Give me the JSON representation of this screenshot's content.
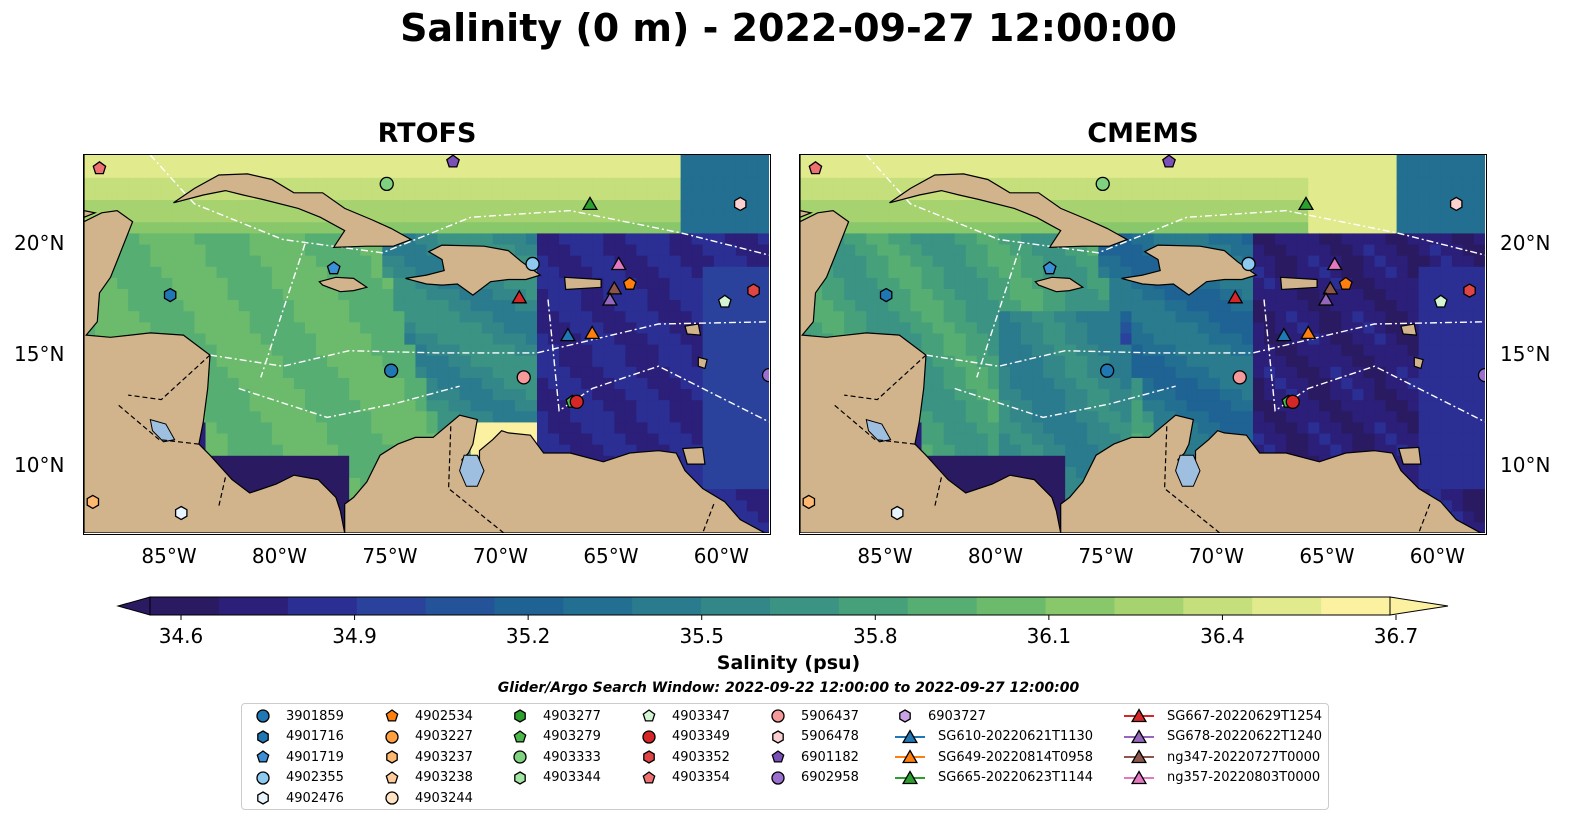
{
  "title": "Salinity (0 m) - 2022-09-27 12:00:00",
  "panels": [
    {
      "title": "RTOFS",
      "field": "rtofs"
    },
    {
      "title": "CMEMS",
      "field": "cmems"
    }
  ],
  "map": {
    "lon_range": [
      -89,
      -58
    ],
    "lat_range": [
      7,
      24
    ],
    "lon_ticks": [
      {
        "lon": -85,
        "label": "85°W"
      },
      {
        "lon": -80,
        "label": "80°W"
      },
      {
        "lon": -75,
        "label": "75°W"
      },
      {
        "lon": -70,
        "label": "70°W"
      },
      {
        "lon": -65,
        "label": "65°W"
      },
      {
        "lon": -60,
        "label": "60°W"
      }
    ],
    "lat_ticks": [
      {
        "lat": 20,
        "label": "20°N"
      },
      {
        "lat": 15,
        "label": "15°N"
      },
      {
        "lat": 10,
        "label": "10°N"
      }
    ],
    "land_color": "#d2b48c",
    "lake_color": "#9fbfe0"
  },
  "colorbar": {
    "label": "Salinity (psu)",
    "ticks": [
      "34.6",
      "34.9",
      "35.2",
      "35.5",
      "35.8",
      "36.1",
      "36.4",
      "36.7"
    ],
    "min": 34.6,
    "max": 36.7,
    "colors": [
      "#2a1a62",
      "#2b1f7a",
      "#2b2f93",
      "#2a429c",
      "#245399",
      "#1f6394",
      "#226f91",
      "#2a7b8d",
      "#338789",
      "#3b9383",
      "#46a17b",
      "#56ae73",
      "#6cbb6d",
      "#88c76a",
      "#a6d36f",
      "#c4df7b",
      "#e2ea8e",
      "#fbf1a1"
    ]
  },
  "search_window": "Glider/Argo Search Window: 2022-09-22 12:00:00 to 2022-09-27 12:00:00",
  "legend": [
    {
      "label": "3901859",
      "marker": "circle",
      "color": "#1f77b4"
    },
    {
      "label": "4901716",
      "marker": "hexagon",
      "color": "#1f77b4"
    },
    {
      "label": "4901719",
      "marker": "pentagon",
      "color": "#3a8fd6"
    },
    {
      "label": "4902355",
      "marker": "circle",
      "color": "#8ec9f0"
    },
    {
      "label": "4902476",
      "marker": "hexagon",
      "color": "#e8f5ff"
    },
    {
      "label": "4902534",
      "marker": "pentagon",
      "color": "#ff7f0e"
    },
    {
      "label": "4903227",
      "marker": "circle",
      "color": "#ff9f40"
    },
    {
      "label": "4903237",
      "marker": "hexagon",
      "color": "#ffb870"
    },
    {
      "label": "4903238",
      "marker": "pentagon",
      "color": "#ffcc99"
    },
    {
      "label": "4903244",
      "marker": "circle",
      "color": "#ffe3c4"
    },
    {
      "label": "4903277",
      "marker": "hexagon",
      "color": "#2ca02c"
    },
    {
      "label": "4903279",
      "marker": "pentagon",
      "color": "#4cb84c"
    },
    {
      "label": "4903333",
      "marker": "circle",
      "color": "#7fd27f"
    },
    {
      "label": "4903344",
      "marker": "hexagon",
      "color": "#a3e6a3"
    },
    {
      "label": "4903347",
      "marker": "pentagon",
      "color": "#d4f5d4"
    },
    {
      "label": "4903349",
      "marker": "circle",
      "color": "#d62728"
    },
    {
      "label": "4903352",
      "marker": "hexagon",
      "color": "#e04545"
    },
    {
      "label": "4903354",
      "marker": "pentagon",
      "color": "#ee7070"
    },
    {
      "label": "5906437",
      "marker": "circle",
      "color": "#f59a9a"
    },
    {
      "label": "5906478",
      "marker": "hexagon",
      "color": "#fbd0d0"
    },
    {
      "label": "6901182",
      "marker": "pentagon",
      "color": "#7b4fb8"
    },
    {
      "label": "6902958",
      "marker": "circle",
      "color": "#9b6fcf"
    },
    {
      "label": "6903727",
      "marker": "hexagon",
      "color": "#c9a3e6"
    },
    {
      "label": "SG610-20220621T1130",
      "marker": "triangle",
      "color": "#1f77b4"
    },
    {
      "label": "SG649-20220814T0958",
      "marker": "triangle",
      "color": "#ff7f0e"
    },
    {
      "label": "SG665-20220623T1144",
      "marker": "triangle",
      "color": "#2ca02c"
    },
    {
      "label": "SG667-20220629T1254",
      "marker": "triangle",
      "color": "#d62728"
    },
    {
      "label": "SG678-20220622T1240",
      "marker": "triangle",
      "color": "#9467bd"
    },
    {
      "label": "ng347-20220727T0000",
      "marker": "triangle",
      "color": "#8c564b"
    },
    {
      "label": "ng357-20220803T0000",
      "marker": "triangle",
      "color": "#e377c2"
    }
  ],
  "observations": [
    {
      "id": "4903354",
      "lon": -88.3,
      "lat": 23.4
    },
    {
      "id": "6901182",
      "lon": -72.3,
      "lat": 23.7
    },
    {
      "id": "4903333",
      "lon": -75.3,
      "lat": 22.7
    },
    {
      "id": "SG665-20220623T1144",
      "lon": -66.1,
      "lat": 21.8
    },
    {
      "id": "5906478",
      "lon": -59.3,
      "lat": 21.8
    },
    {
      "id": "4901719",
      "lon": -77.7,
      "lat": 18.9
    },
    {
      "id": "4902355",
      "lon": -68.7,
      "lat": 19.1
    },
    {
      "id": "ng357-20220803T0000",
      "lon": -64.8,
      "lat": 19.1
    },
    {
      "id": "4901716",
      "lon": -85.1,
      "lat": 17.7
    },
    {
      "id": "SG667-20220629T1254",
      "lon": -69.3,
      "lat": 17.6
    },
    {
      "id": "4902534",
      "lon": -64.3,
      "lat": 18.2
    },
    {
      "id": "ng347-20220727T0000",
      "lon": -65.0,
      "lat": 18.0
    },
    {
      "id": "SG678-20220622T1240",
      "lon": -65.2,
      "lat": 17.5
    },
    {
      "id": "4903347",
      "lon": -60.0,
      "lat": 17.4
    },
    {
      "id": "4903352",
      "lon": -58.7,
      "lat": 17.9
    },
    {
      "id": "SG610-20220621T1130",
      "lon": -67.1,
      "lat": 15.9
    },
    {
      "id": "SG649-20220814T0958",
      "lon": -66.0,
      "lat": 16.0
    },
    {
      "id": "3901859",
      "lon": -75.1,
      "lat": 14.3
    },
    {
      "id": "5906437",
      "lon": -69.1,
      "lat": 14.0
    },
    {
      "id": "4903279",
      "lon": -66.9,
      "lat": 12.9
    },
    {
      "id": "4903349",
      "lon": -66.7,
      "lat": 12.9
    },
    {
      "id": "6902958",
      "lon": -58.0,
      "lat": 14.1
    },
    {
      "id": "4903237",
      "lon": -88.6,
      "lat": 8.4
    },
    {
      "id": "4902476",
      "lon": -84.6,
      "lat": 7.9
    }
  ]
}
